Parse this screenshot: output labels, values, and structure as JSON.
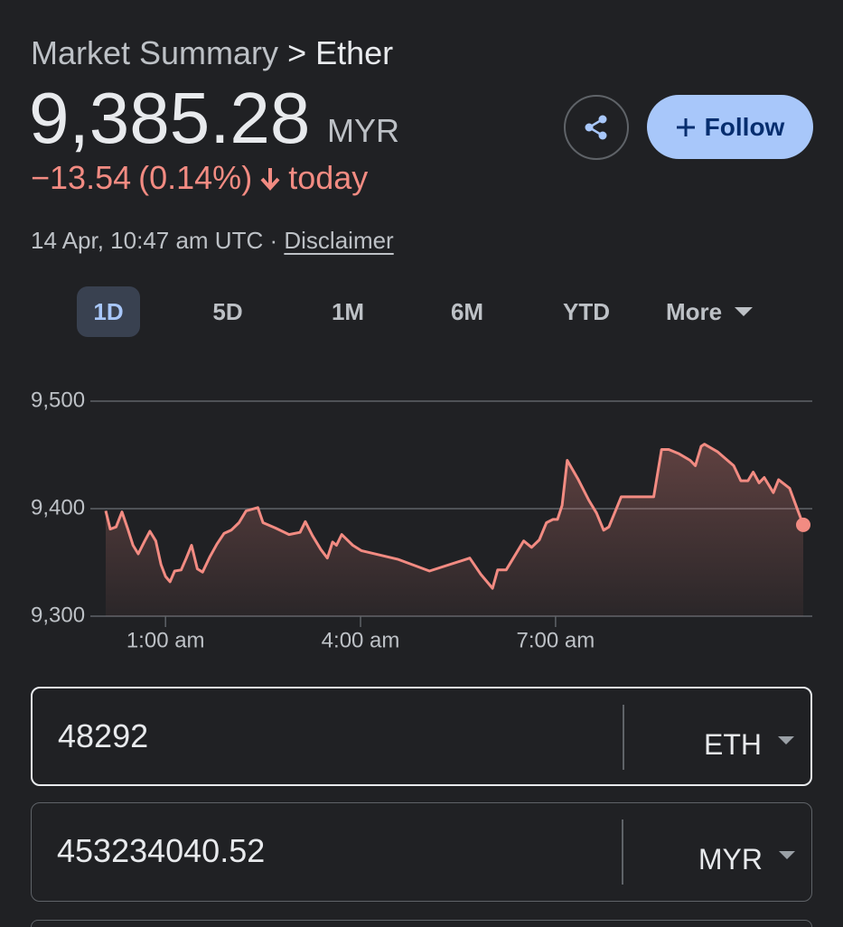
{
  "header": {
    "breadcrumb": "Market Summary",
    "separator": ">",
    "title": "Ether"
  },
  "quote": {
    "price": "9,385.28",
    "currency": "MYR",
    "change": "−13.54",
    "change_percent": "(0.14%)",
    "period": "today",
    "timestamp": "14 Apr, 10:47 am UTC ·",
    "disclaimer": "Disclaimer"
  },
  "actions": {
    "follow": "Follow"
  },
  "ranges": {
    "options": [
      "1D",
      "5D",
      "1M",
      "6M",
      "YTD"
    ],
    "more": "More",
    "selected": 0
  },
  "chart_data": {
    "type": "line",
    "color": "#f28b82",
    "area": true,
    "grid": true,
    "x": [
      0.08,
      0.15,
      0.24,
      0.33,
      0.42,
      0.5,
      0.58,
      0.68,
      0.76,
      0.85,
      0.93,
      1.0,
      1.07,
      1.14,
      1.24,
      1.32,
      1.4,
      1.49,
      1.57,
      1.68,
      1.79,
      1.9,
      2.01,
      2.13,
      2.24,
      2.42,
      2.5,
      2.69,
      2.9,
      3.07,
      3.15,
      3.26,
      3.39,
      3.49,
      3.57,
      3.63,
      3.71,
      3.88,
      4.01,
      4.57,
      5.06,
      5.68,
      5.85,
      6.03,
      6.11,
      6.24,
      6.4,
      6.51,
      6.63,
      6.75,
      6.86,
      6.96,
      7.03,
      7.1,
      7.18,
      7.35,
      7.51,
      7.63,
      7.74,
      7.82,
      8.01,
      8.51,
      8.63,
      8.74,
      8.9,
      9.07,
      9.15,
      9.24,
      9.29,
      9.49,
      9.74,
      9.85,
      9.96,
      10.04,
      10.13,
      10.21,
      10.35,
      10.43,
      10.6,
      10.71,
      10.81
    ],
    "values": [
      9398,
      9381,
      9383,
      9397,
      9381,
      9366,
      9358,
      9370,
      9379,
      9370,
      9348,
      9337,
      9332,
      9342,
      9343,
      9354,
      9366,
      9344,
      9341,
      9355,
      9367,
      9377,
      9380,
      9387,
      9398,
      9401,
      9387,
      9382,
      9376,
      9378,
      9388,
      9375,
      9362,
      9354,
      9369,
      9366,
      9376,
      9366,
      9361,
      9353,
      9342,
      9354,
      9339,
      9326,
      9343,
      9343,
      9359,
      9370,
      9364,
      9371,
      9387,
      9390,
      9390,
      9403,
      9445,
      9427,
      9408,
      9396,
      9380,
      9383,
      9411,
      9411,
      9455,
      9455,
      9451,
      9445,
      9440,
      9458,
      9460,
      9453,
      9440,
      9426,
      9426,
      9434,
      9424,
      9429,
      9415,
      9427,
      9419,
      9401,
      9385
    ],
    "xlim": [
      0.08,
      10.81
    ],
    "ylim": [
      9300,
      9500
    ],
    "xticks": [
      {
        "value": 1,
        "label": "1:00 am"
      },
      {
        "value": 4,
        "label": "4:00 am"
      },
      {
        "value": 7,
        "label": "7:00 am"
      }
    ],
    "yticks": [
      {
        "value": 9500,
        "label": "9,500"
      },
      {
        "value": 9400,
        "label": "9,400"
      },
      {
        "value": 9300,
        "label": "9,300"
      }
    ]
  },
  "converter": {
    "rows": [
      {
        "amount": "48292",
        "unit": "ETH"
      },
      {
        "amount": "453234040.52",
        "unit": "MYR"
      }
    ]
  }
}
